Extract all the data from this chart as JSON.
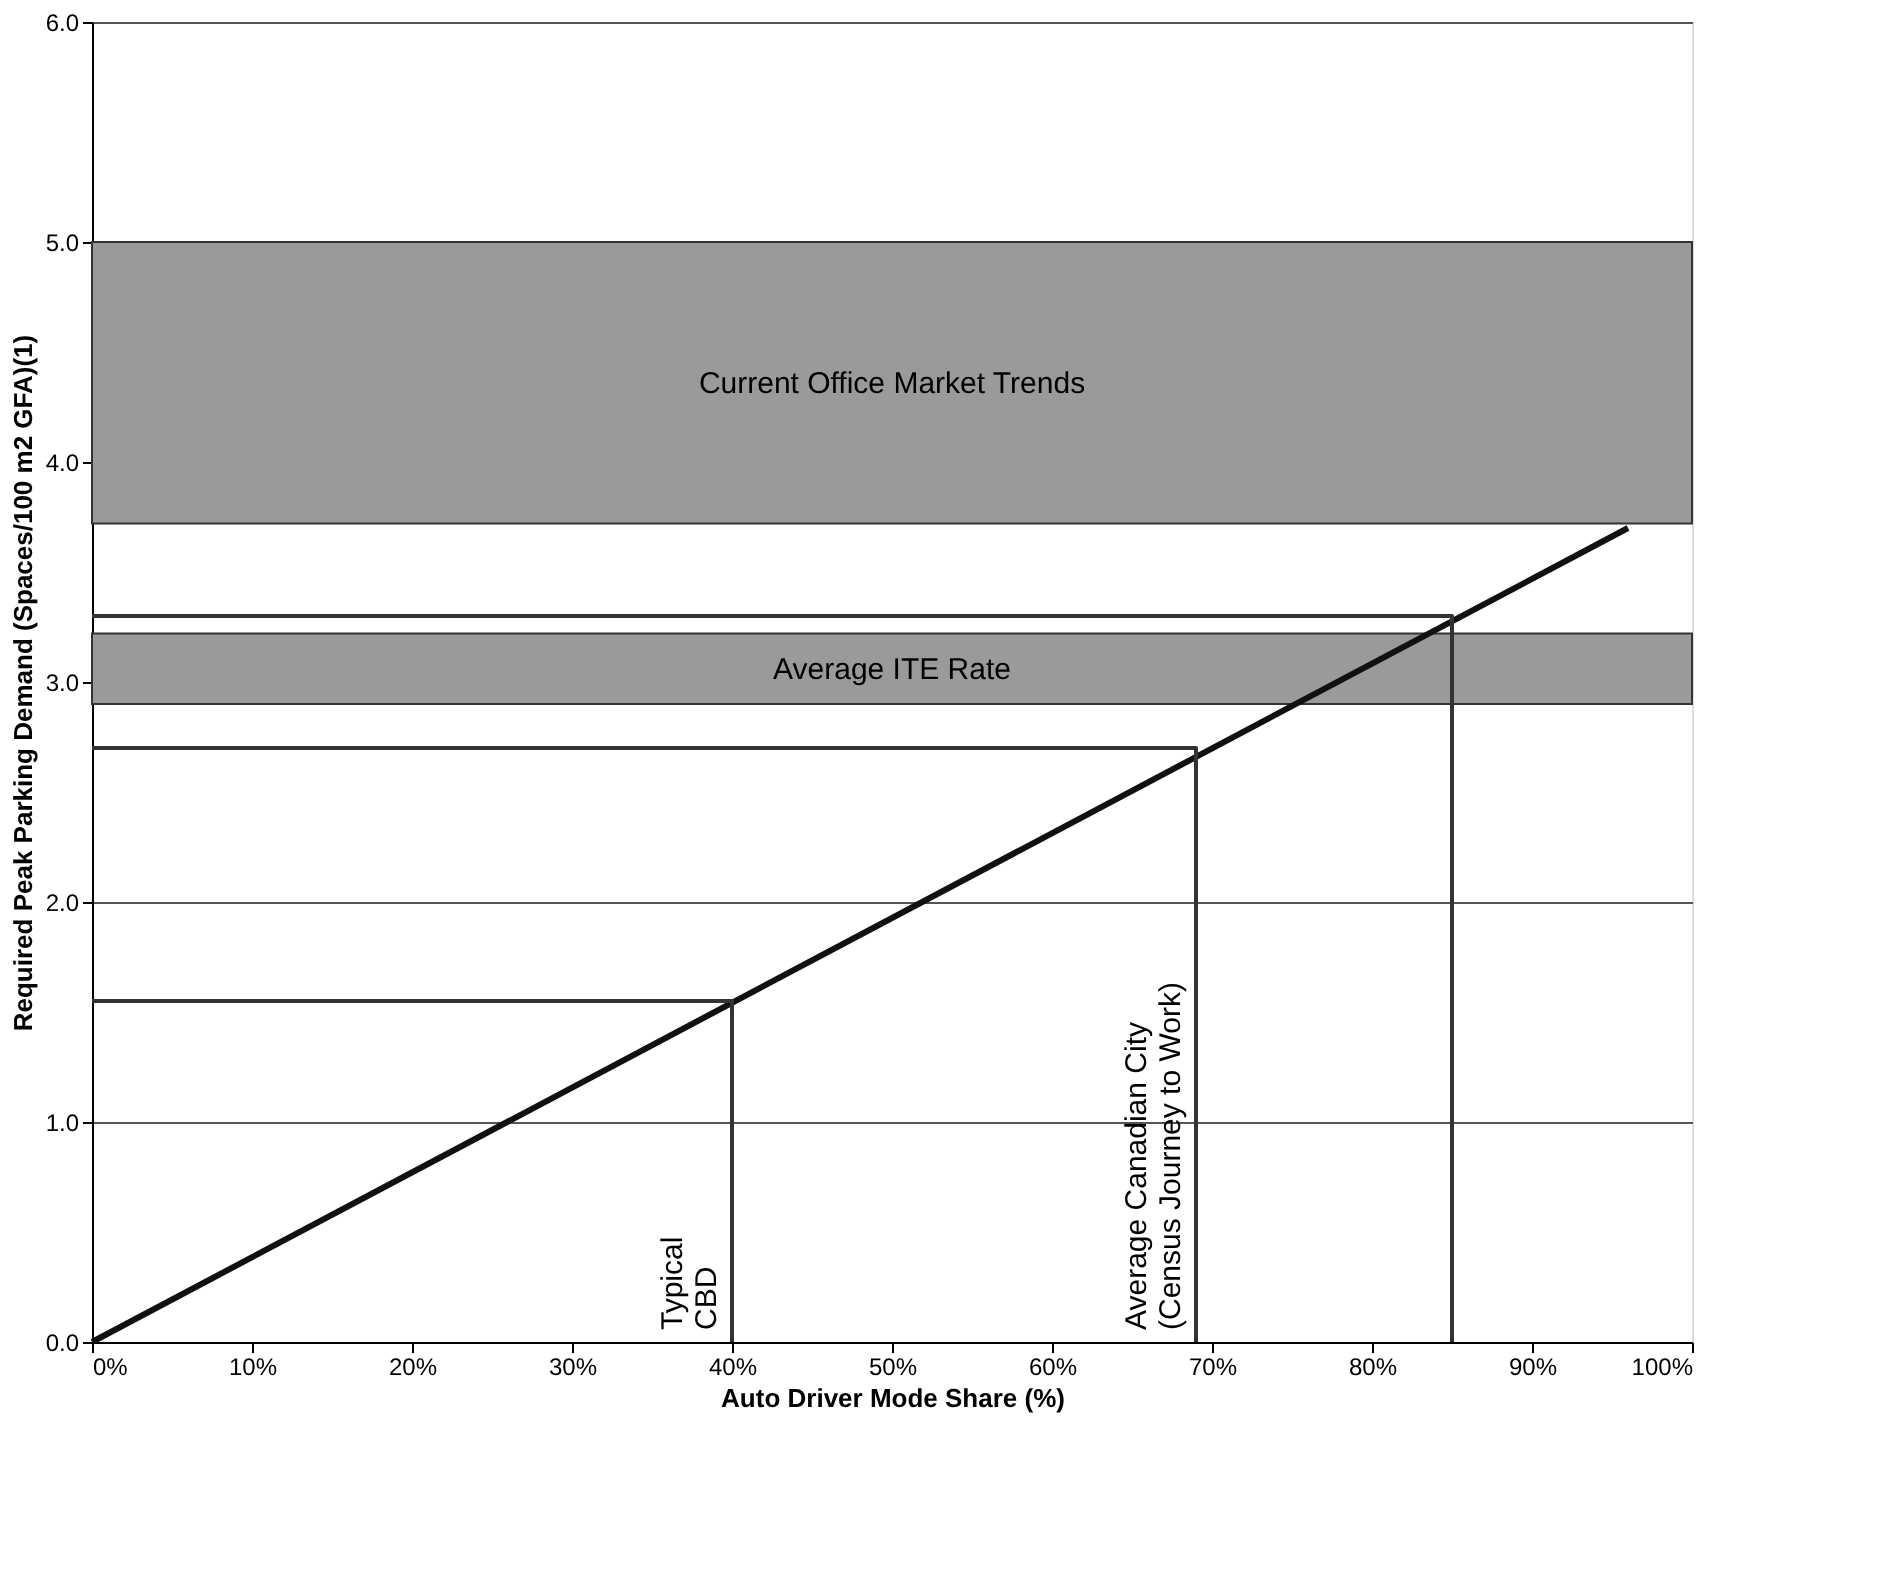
{
  "chart_data": {
    "type": "line",
    "xlabel": "Auto Driver Mode Share (%)",
    "ylabel": "Required Peak Parking Demand (Spaces/100 m2 GFA)(1)",
    "xlim": [
      0,
      100
    ],
    "ylim": [
      0,
      6
    ],
    "xticks": [
      {
        "value": 0,
        "label": "0%"
      },
      {
        "value": 10,
        "label": "10%"
      },
      {
        "value": 20,
        "label": "20%"
      },
      {
        "value": 30,
        "label": "30%"
      },
      {
        "value": 40,
        "label": "40%"
      },
      {
        "value": 50,
        "label": "50%"
      },
      {
        "value": 60,
        "label": "60%"
      },
      {
        "value": 70,
        "label": "70%"
      },
      {
        "value": 80,
        "label": "80%"
      },
      {
        "value": 90,
        "label": "90%"
      },
      {
        "value": 100,
        "label": "100%"
      }
    ],
    "yticks": [
      {
        "value": 0,
        "label": "0.0"
      },
      {
        "value": 1,
        "label": "1.0"
      },
      {
        "value": 2,
        "label": "2.0"
      },
      {
        "value": 3,
        "label": "3.0"
      },
      {
        "value": 4,
        "label": "4.0"
      },
      {
        "value": 5,
        "label": "5.0"
      },
      {
        "value": 6,
        "label": "6.0"
      }
    ],
    "grid": "y",
    "series": [
      {
        "color": "#111111",
        "x": [
          0,
          96
        ],
        "values": [
          0,
          3.7
        ]
      },
      {
        "color": "#333333",
        "x": [
          0,
          40,
          40
        ],
        "values": [
          1.55,
          1.55,
          0
        ]
      },
      {
        "color": "#333333",
        "x": [
          0,
          69,
          69
        ],
        "values": [
          2.7,
          2.7,
          0
        ]
      },
      {
        "color": "#333333",
        "x": [
          0,
          85,
          85
        ],
        "values": [
          3.3,
          3.3,
          0
        ]
      }
    ],
    "bands": [
      {
        "axis": "y",
        "from": 3.72,
        "to": 5.0,
        "label": "Current Office Market Trends",
        "color": "#9a9a9a"
      },
      {
        "axis": "y",
        "from": 2.9,
        "to": 3.22,
        "label": "Average ITE Rate",
        "color": "#9a9a9a"
      }
    ],
    "line_style": "solid",
    "annotations": [
      "Typical\nCBD",
      "Average Canadian City\n(Census Journey to Work)"
    ]
  }
}
